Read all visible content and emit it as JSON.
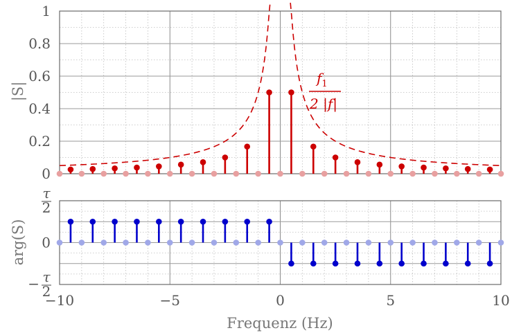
{
  "chart_data": [
    {
      "type": "stem",
      "ylabel": "|S|",
      "xlim": [
        -10,
        10
      ],
      "ylim": [
        0,
        1
      ],
      "yticks": [
        0,
        0.2,
        0.4,
        0.6,
        0.8,
        1
      ],
      "ytick_labels": [
        "0",
        "0.2",
        "0.4",
        "0.6",
        "0.8",
        "1"
      ],
      "grid": true,
      "series": [
        {
          "x": [
            -9.5,
            -8.5,
            -7.5,
            -6.5,
            -5.5,
            -4.5,
            -3.5,
            -2.5,
            -1.5,
            -0.5,
            0.5,
            1.5,
            2.5,
            3.5,
            4.5,
            5.5,
            6.5,
            7.5,
            8.5,
            9.5
          ],
          "values": [
            0.026,
            0.029,
            0.033,
            0.038,
            0.045,
            0.056,
            0.071,
            0.1,
            0.167,
            0.5,
            0.5,
            0.167,
            0.1,
            0.071,
            0.056,
            0.045,
            0.038,
            0.033,
            0.029,
            0.026
          ],
          "color": "#cc0000"
        },
        {
          "x": [
            -10,
            -9,
            -8,
            -7,
            -6,
            -5,
            -4,
            -3,
            -2,
            -1,
            0,
            1,
            2,
            3,
            4,
            5,
            6,
            7,
            8,
            9,
            10
          ],
          "values": [
            0,
            0,
            0,
            0,
            0,
            0,
            0,
            0,
            0,
            0,
            0,
            0,
            0,
            0,
            0,
            0,
            0,
            0,
            0,
            0,
            0
          ],
          "color": "#e8a0a0"
        }
      ],
      "envelope": {
        "style": "dashed",
        "color": "#cc0000",
        "formula": "f1/(2|f|)",
        "f1": 1
      },
      "annotation": {
        "numerator": "f",
        "numerator_sub": "1",
        "denominator": "2 |f|",
        "x": 1.7,
        "y": 0.5
      }
    },
    {
      "type": "stem",
      "ylabel": "arg(S)",
      "xlabel": "Frequenz (Hz)",
      "xlim": [
        -10,
        10
      ],
      "ylim": [
        -0.5,
        0.5
      ],
      "xticks": [
        -10,
        -5,
        0,
        5,
        10
      ],
      "xtick_labels": [
        "−10",
        "−5",
        "0",
        "5",
        "10"
      ],
      "ytick_labels": [
        "τ/2",
        "0",
        "−τ/2"
      ],
      "ytick_values": [
        0.5,
        0,
        -0.5
      ],
      "grid": true,
      "series": [
        {
          "x": [
            -9.5,
            -8.5,
            -7.5,
            -6.5,
            -5.5,
            -4.5,
            -3.5,
            -2.5,
            -1.5,
            -0.5,
            0.5,
            1.5,
            2.5,
            3.5,
            4.5,
            5.5,
            6.5,
            7.5,
            8.5,
            9.5
          ],
          "values": [
            0.25,
            0.25,
            0.25,
            0.25,
            0.25,
            0.25,
            0.25,
            0.25,
            0.25,
            0.25,
            -0.25,
            -0.25,
            -0.25,
            -0.25,
            -0.25,
            -0.25,
            -0.25,
            -0.25,
            -0.25,
            -0.25
          ],
          "color": "#0000cc"
        },
        {
          "x": [
            -10,
            -9,
            -8,
            -7,
            -6,
            -5,
            -4,
            -3,
            -2,
            -1,
            0,
            1,
            2,
            3,
            4,
            5,
            6,
            7,
            8,
            9,
            10
          ],
          "values": [
            0,
            0,
            0,
            0,
            0,
            0,
            0,
            0,
            0,
            0,
            0,
            0,
            0,
            0,
            0,
            0,
            0,
            0,
            0,
            0,
            0
          ],
          "color": "#a0a8e8"
        }
      ]
    }
  ]
}
